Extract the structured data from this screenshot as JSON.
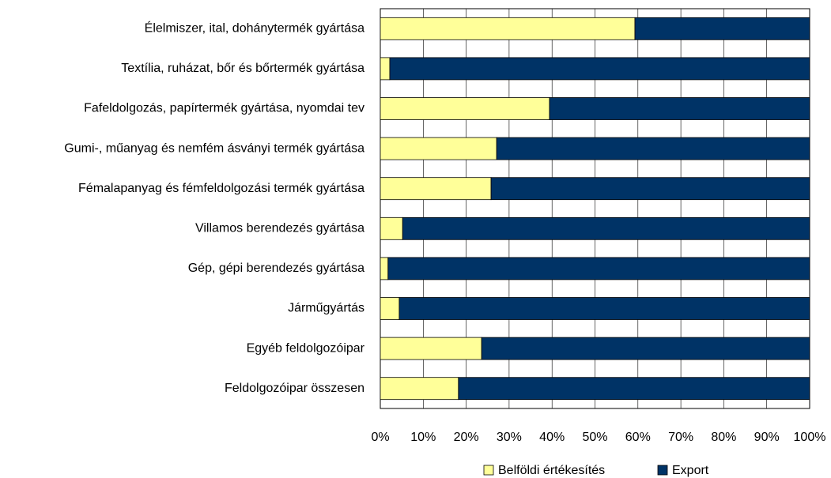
{
  "chart_data": {
    "type": "stacked-barh",
    "categories": [
      "Élelmiszer, ital, dohánytermék gyártása",
      "Textília, ruházat, bőr és bőrtermék gyártása",
      "Fafeldolgozás, papírtermék gyártása, nyomdai tev",
      "Gumi-, műanyag és nemfém ásványi termék gyártása",
      "Fémalapanyag és fémfeldolgozási termék gyártása",
      "Villamos berendezés gyártása",
      "Gép, gépi berendezés gyártása",
      "Járműgyártás",
      "Egyéb feldolgozóipar",
      "Feldolgozóipar összesen"
    ],
    "series": [
      {
        "name": "Belföldi értékesítés",
        "color": "#ffff99",
        "values": [
          59.3,
          2.2,
          39.4,
          27.1,
          25.8,
          5.2,
          1.8,
          4.4,
          23.6,
          18.2
        ]
      },
      {
        "name": "Export",
        "color": "#003366",
        "values": [
          40.7,
          97.8,
          60.6,
          72.9,
          74.2,
          94.8,
          98.2,
          95.6,
          76.4,
          81.8
        ]
      }
    ],
    "xlim": [
      0,
      100
    ],
    "xticks": [
      {
        "value": 0,
        "label": "0%"
      },
      {
        "value": 10,
        "label": "10%"
      },
      {
        "value": 20,
        "label": "20%"
      },
      {
        "value": 30,
        "label": "30%"
      },
      {
        "value": 40,
        "label": "40%"
      },
      {
        "value": 50,
        "label": "50%"
      },
      {
        "value": 60,
        "label": "60%"
      },
      {
        "value": 70,
        "label": "70%"
      },
      {
        "value": 80,
        "label": "80%"
      },
      {
        "value": 90,
        "label": "90%"
      },
      {
        "value": 100,
        "label": "100%"
      }
    ],
    "grid": true
  }
}
